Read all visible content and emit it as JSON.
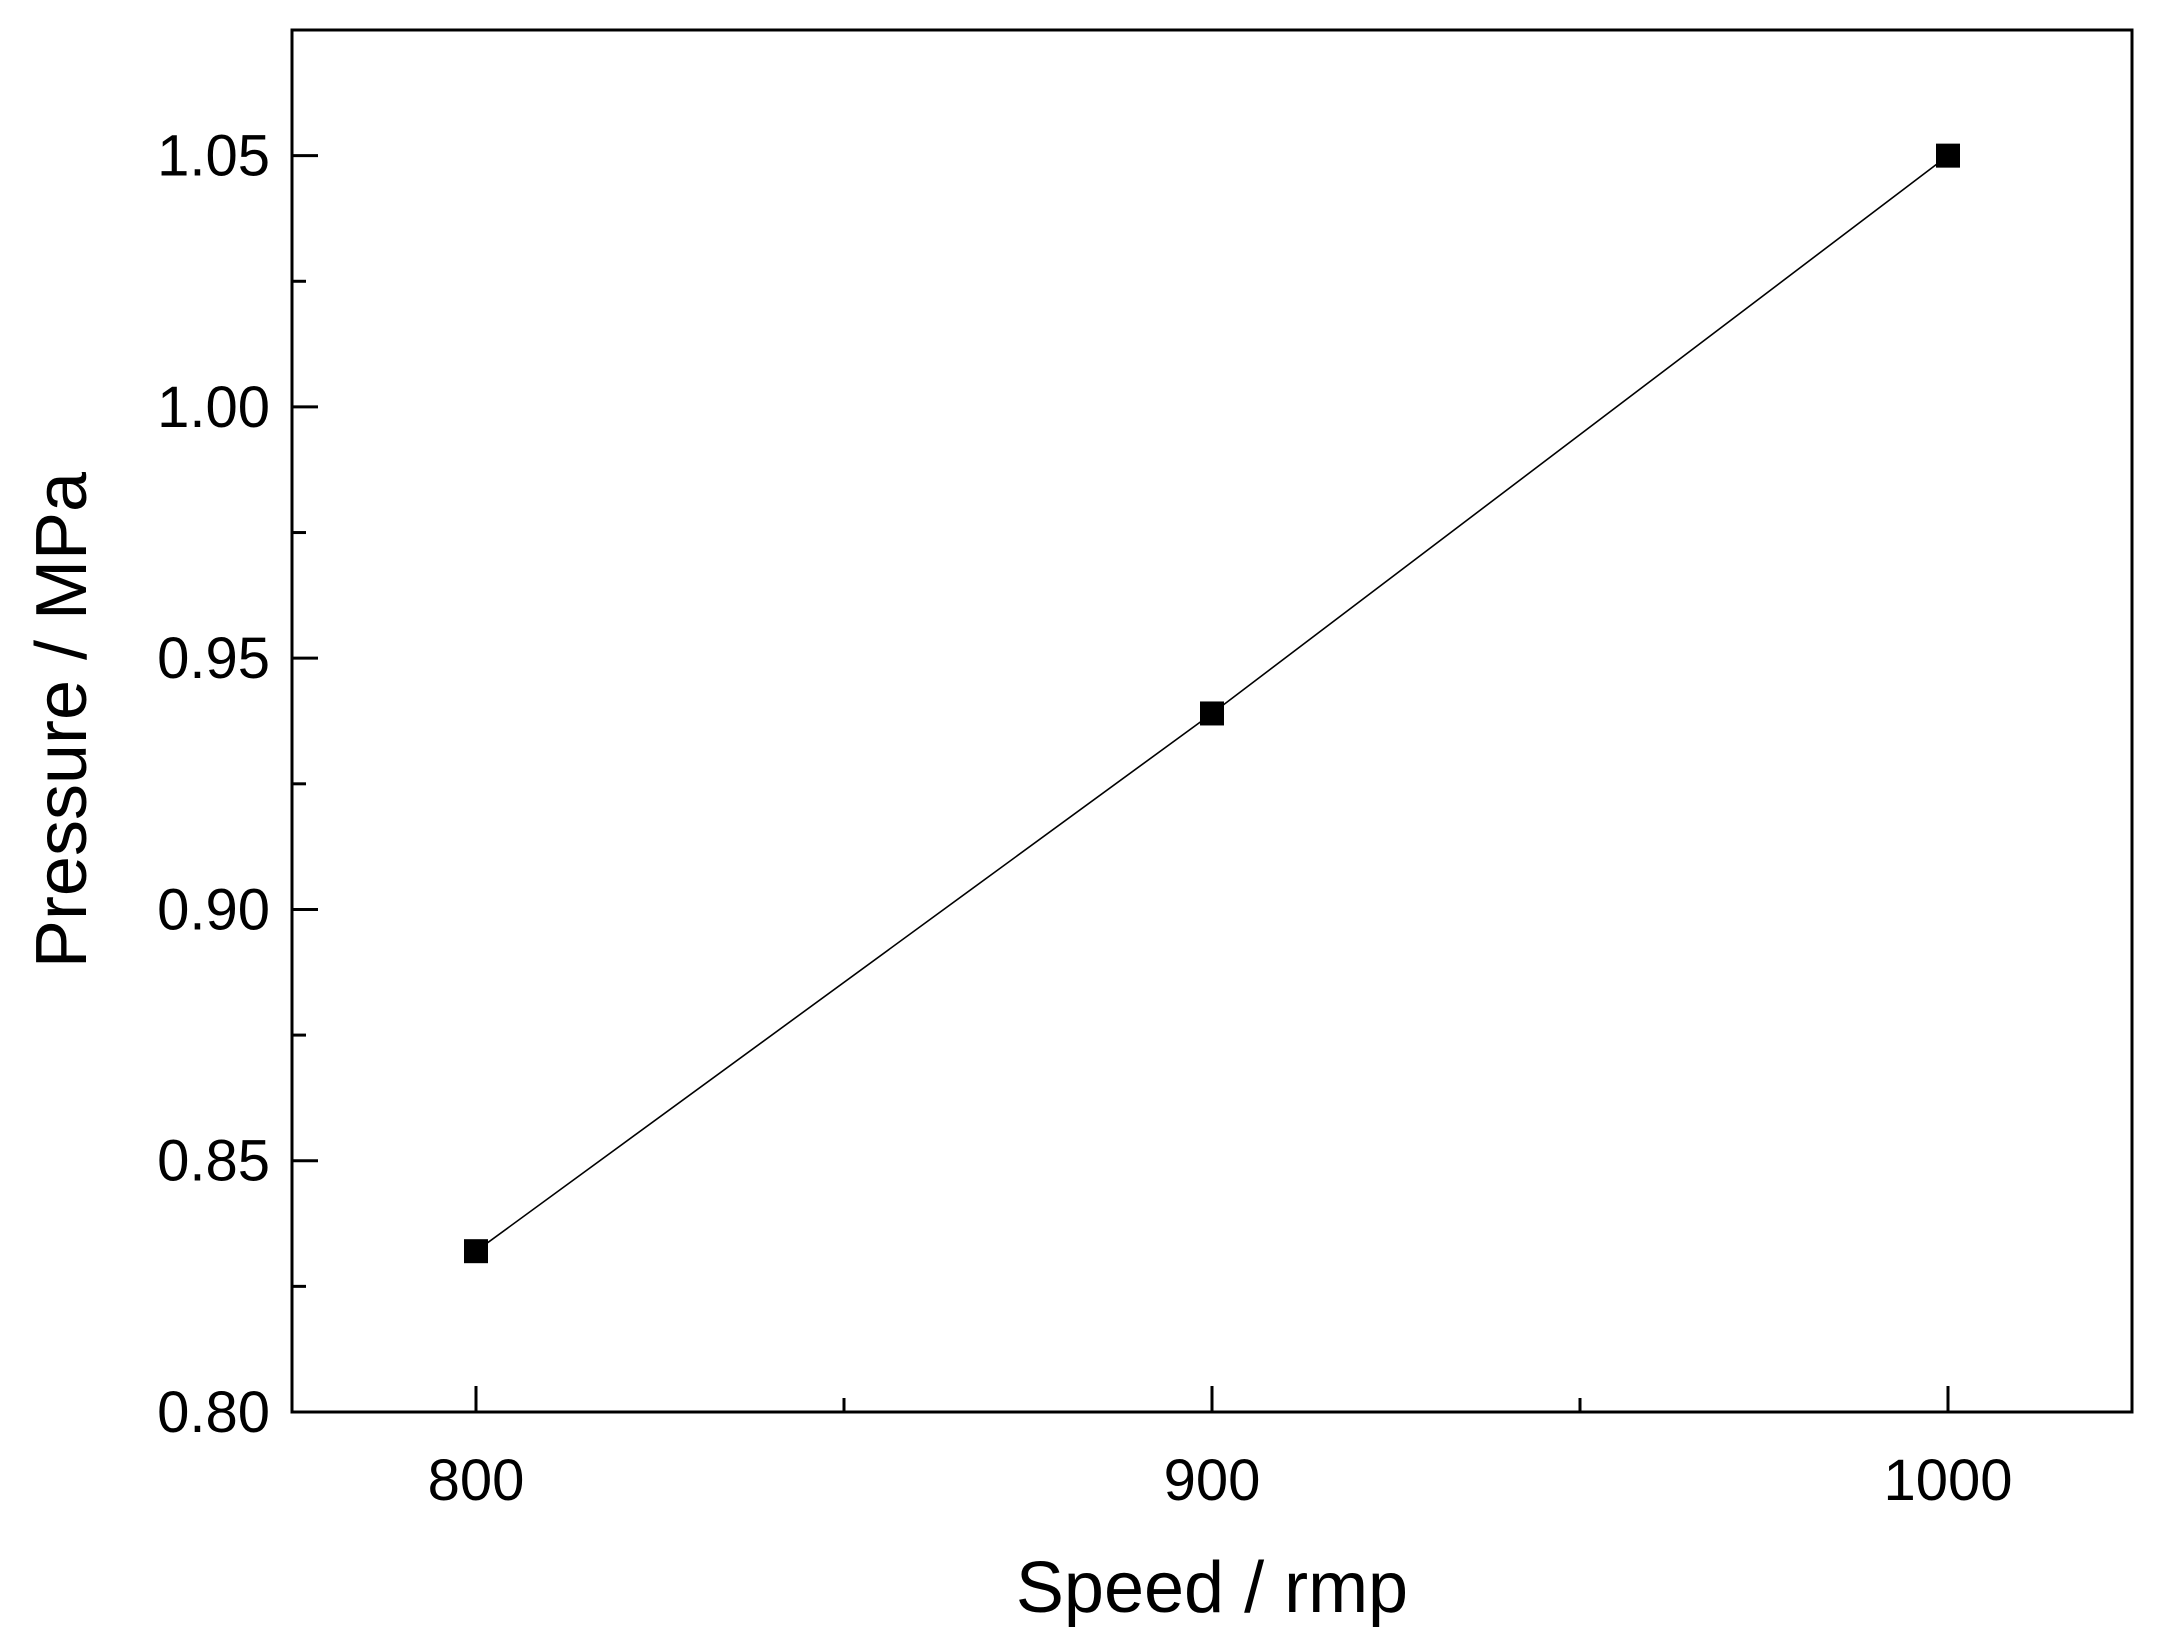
{
  "chart_data": {
    "type": "line",
    "title": "",
    "xlabel": "Speed / rmp",
    "ylabel": "Pressure / MPa",
    "xlim": [
      775,
      1025
    ],
    "ylim": [
      0.8,
      1.075
    ],
    "x_ticks": [
      800,
      900,
      1000
    ],
    "x_tick_labels": [
      "800",
      "900",
      "1000"
    ],
    "x_minor_ticks": [
      850,
      950
    ],
    "y_ticks": [
      0.8,
      0.85,
      0.9,
      0.95,
      1.0,
      1.05
    ],
    "y_tick_labels": [
      "0.80",
      "0.85",
      "0.90",
      "0.95",
      "1.00",
      "1.05"
    ],
    "y_minor_ticks": [
      0.825,
      0.875,
      0.925,
      0.975,
      1.025
    ],
    "grid": false,
    "legend": "none",
    "series": [
      {
        "marker": "square",
        "color": "#000000",
        "x": [
          800,
          900,
          1000
        ],
        "y": [
          0.832,
          0.939,
          1.05
        ]
      }
    ]
  }
}
